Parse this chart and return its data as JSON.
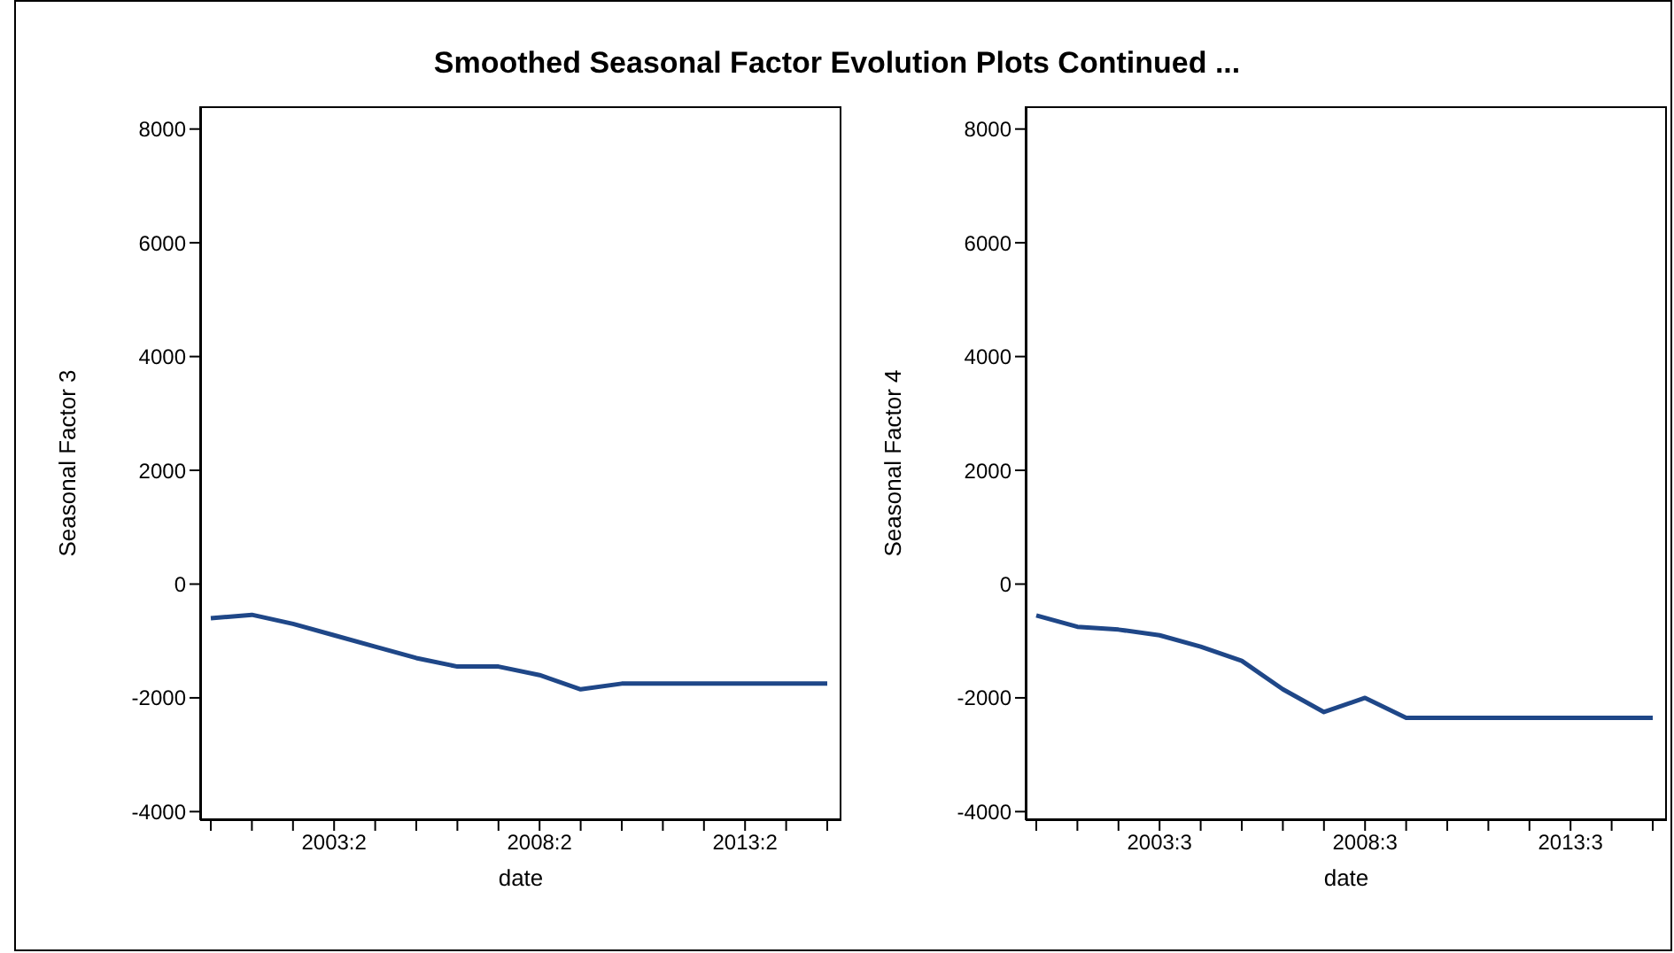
{
  "chart_data": [
    {
      "type": "line",
      "title": "Smoothed Seasonal Factor Evolution Plots Continued ...",
      "xlabel": "date",
      "ylabel": "Seasonal Factor 3",
      "categories": [
        null,
        null,
        null,
        "2003:2",
        null,
        null,
        null,
        null,
        "2008:2",
        null,
        null,
        null,
        null,
        "2013:2",
        null,
        null
      ],
      "series": [
        {
          "color": "#1f4788",
          "values": [
            -600,
            -540,
            -700,
            -900,
            -1100,
            -1300,
            -1450,
            -1450,
            -1600,
            -1850,
            -1750,
            -1750,
            -1750,
            -1750,
            -1750,
            -1750
          ]
        }
      ],
      "ylim": [
        -4150,
        8400
      ],
      "yticks": [
        -4000,
        -2000,
        0,
        2000,
        4000,
        6000,
        8000
      ],
      "legend": false,
      "marker": "none",
      "line_style": "solid"
    },
    {
      "type": "line",
      "xlabel": "date",
      "ylabel": "Seasonal Factor 4",
      "categories": [
        null,
        null,
        null,
        "2003:3",
        null,
        null,
        null,
        null,
        "2008:3",
        null,
        null,
        null,
        null,
        "2013:3",
        null,
        null
      ],
      "series": [
        {
          "color": "#1f4788",
          "values": [
            -550,
            -750,
            -800,
            -900,
            -1100,
            -1350,
            -1850,
            -2250,
            -2000,
            -2350,
            -2350,
            -2350,
            -2350,
            -2350,
            -2350,
            -2350
          ]
        }
      ],
      "ylim": [
        -4150,
        8400
      ],
      "yticks": [
        -4000,
        -2000,
        0,
        2000,
        4000,
        6000,
        8000
      ],
      "legend": false,
      "marker": "none",
      "line_style": "solid"
    }
  ]
}
